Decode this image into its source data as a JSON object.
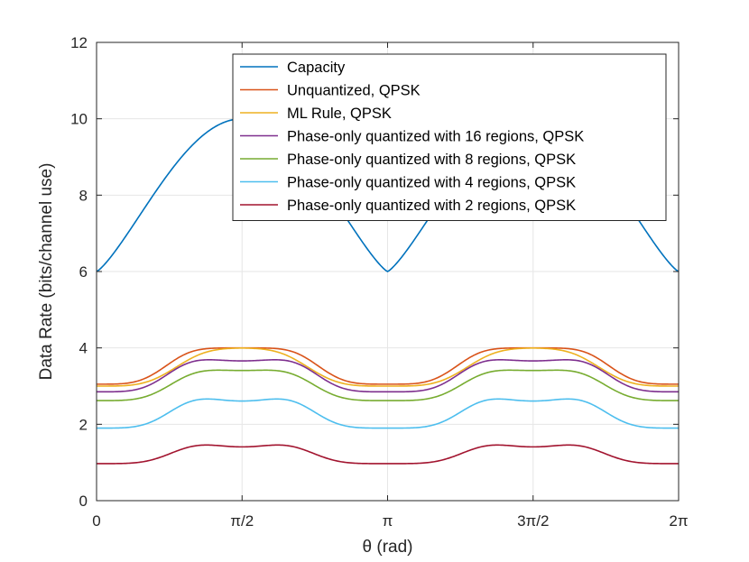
{
  "chart_data": {
    "type": "line",
    "xlabel": "θ (rad)",
    "ylabel": "Data Rate (bits/channel use)",
    "xlim": [
      0,
      6.2832
    ],
    "ylim": [
      0,
      12
    ],
    "xticks": [
      {
        "value": 0,
        "label": "0"
      },
      {
        "value": 1.5708,
        "label": "π/2"
      },
      {
        "value": 3.1416,
        "label": "π"
      },
      {
        "value": 4.7124,
        "label": "3π/2"
      },
      {
        "value": 6.2832,
        "label": "2π"
      }
    ],
    "yticks": [
      0,
      2,
      4,
      6,
      8,
      10,
      12
    ],
    "grid": true,
    "legend_position": "top-right",
    "series": [
      {
        "name": "Capacity",
        "color": "#0072BD",
        "formula": "capacity",
        "params": {
          "min": 6.0,
          "max": 10.0
        }
      },
      {
        "name": "Unquantized, QPSK",
        "color": "#D95319",
        "formula": "plateau",
        "params": {
          "min": 3.05,
          "max": 4.0,
          "w": 0.32
        }
      },
      {
        "name": "ML Rule, QPSK",
        "color": "#EDB120",
        "formula": "plateau",
        "params": {
          "min": 3.0,
          "max": 4.0,
          "w": 0.42
        }
      },
      {
        "name": "Phase-only quantized with 16 regions, QPSK",
        "color": "#7E2F8E",
        "formula": "ripple",
        "params": {
          "min": 2.85,
          "max": 3.72,
          "w": 0.34,
          "ripple": 0.06
        }
      },
      {
        "name": "Phase-only quantized with 8 regions, QPSK",
        "color": "#77AC30",
        "formula": "ripple",
        "params": {
          "min": 2.62,
          "max": 3.46,
          "w": 0.38,
          "ripple": 0.05
        }
      },
      {
        "name": "Phase-only quantized with 4 regions, QPSK",
        "color": "#4DBEEE",
        "formula": "ripple",
        "params": {
          "min": 1.9,
          "max": 2.72,
          "w": 0.38,
          "ripple": 0.11
        }
      },
      {
        "name": "Phase-only quantized with 2 regions, QPSK",
        "color": "#A2142F",
        "formula": "ripple",
        "params": {
          "min": 0.97,
          "max": 1.52,
          "w": 0.42,
          "ripple": 0.11
        }
      }
    ]
  }
}
